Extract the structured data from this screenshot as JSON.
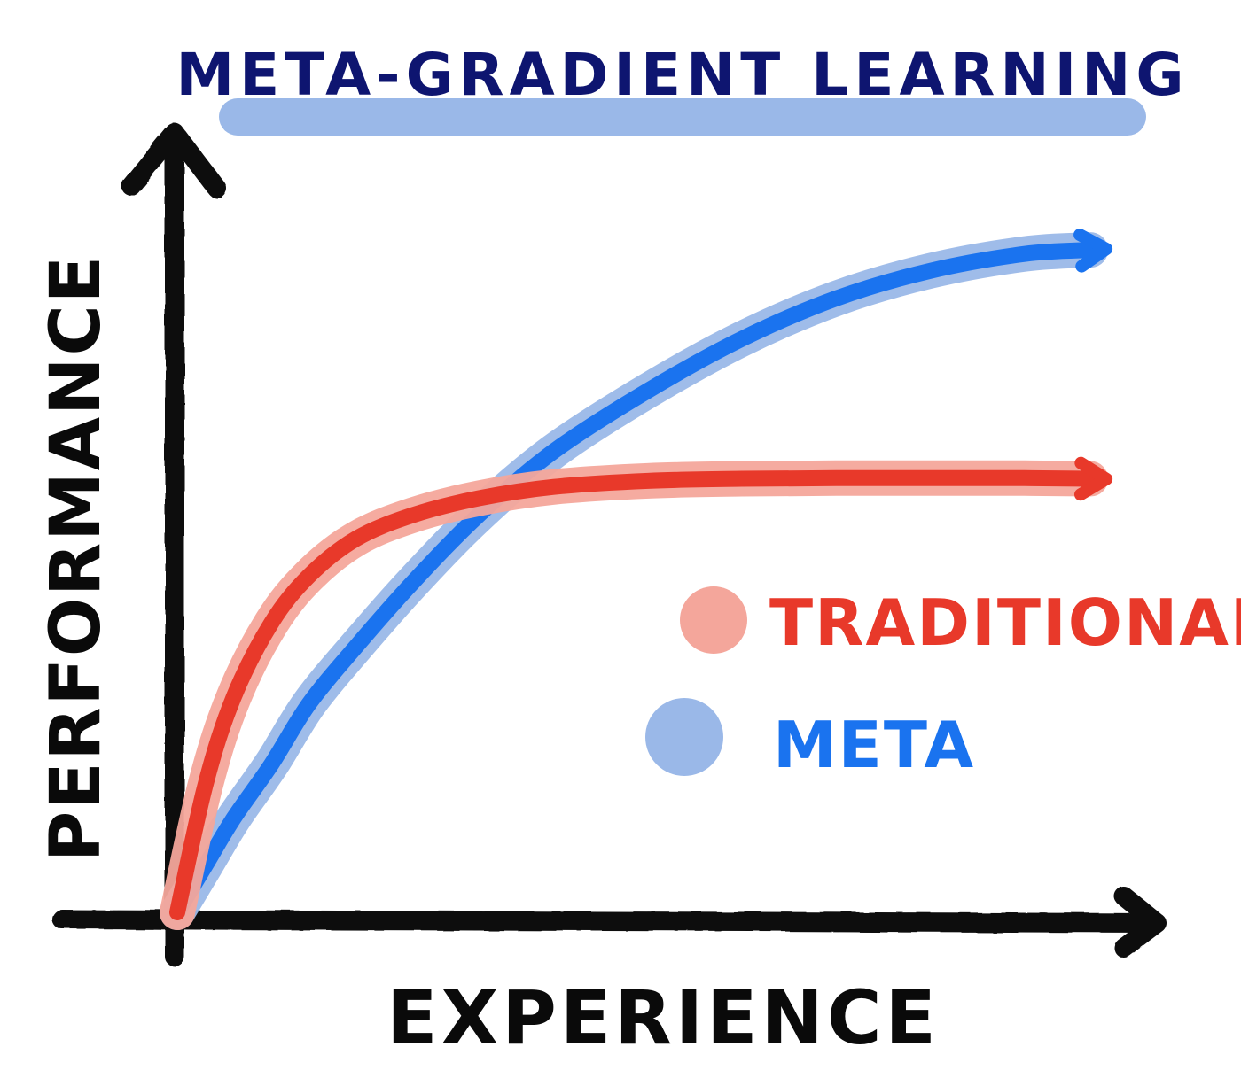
{
  "chart_data": {
    "type": "line",
    "title": "META-GRADIENT LEARNING",
    "xlabel": "EXPERIENCE",
    "ylabel": "PERFORMANCE",
    "xlim": [
      0,
      100
    ],
    "ylim": [
      0,
      100
    ],
    "grid": false,
    "legend_position": "center-right",
    "x": [
      0,
      3,
      6,
      10,
      14,
      19,
      25,
      32,
      40,
      50,
      60,
      70,
      80,
      90,
      97
    ],
    "series": [
      {
        "name": "TRADITIONAL",
        "color": "#e8392a",
        "halo_color": "#f4a69b",
        "values": [
          0,
          19,
          32,
          43,
          50,
          55.5,
          59,
          61.5,
          63.2,
          64.1,
          64.4,
          64.5,
          64.5,
          64.5,
          64.4
        ]
      },
      {
        "name": "META",
        "color": "#1a73ef",
        "halo_color": "#9ab8e8",
        "values": [
          0,
          7,
          14,
          22,
          31,
          39.5,
          49,
          59,
          68.5,
          77.5,
          85.2,
          91.2,
          95.3,
          97.8,
          98.4
        ]
      }
    ]
  },
  "colors": {
    "title": "#0e1570",
    "title_underline": "#9ab8e8",
    "axis": "#0a0a0a"
  }
}
